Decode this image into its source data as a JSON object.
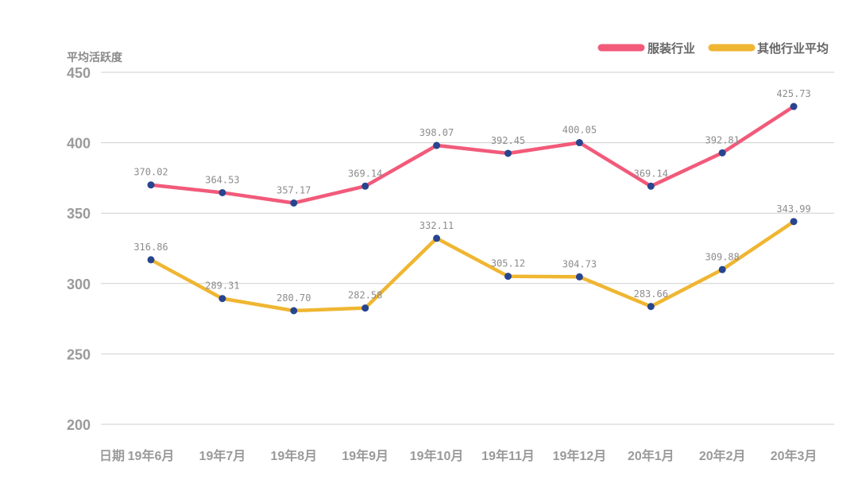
{
  "chart_data": {
    "type": "line",
    "ylabel": "平均活跃度",
    "x_prefix": "日期",
    "categories": [
      "19年6月",
      "19年7月",
      "19年8月",
      "19年9月",
      "19年10月",
      "19年11月",
      "19年12月",
      "20年1月",
      "20年2月",
      "20年3月"
    ],
    "ylim": [
      200,
      450
    ],
    "yticks": [
      450,
      400,
      350,
      300,
      250,
      200
    ],
    "grid": true,
    "legend_position": "top-right",
    "series": [
      {
        "name": "服装行业",
        "color": "#f25a7a",
        "values": [
          370.02,
          364.53,
          357.17,
          369.14,
          398.07,
          392.45,
          400.05,
          369.14,
          392.81,
          425.73
        ],
        "labels": [
          "370.02",
          "364.53",
          "357.17",
          "369.14",
          "398.07",
          "392.45",
          "400.05",
          "369.14",
          "392.81",
          "425.73"
        ]
      },
      {
        "name": "其他行业平均",
        "color": "#efb632",
        "values": [
          316.86,
          289.31,
          280.7,
          282.58,
          332.11,
          305.12,
          304.73,
          283.66,
          309.88,
          343.99
        ],
        "labels": [
          "316.86",
          "289.31",
          "280.70",
          "282.58",
          "332.11",
          "305.12",
          "304.73",
          "283.66",
          "309.88",
          "343.99"
        ]
      }
    ],
    "marker_color": "#27458f"
  }
}
